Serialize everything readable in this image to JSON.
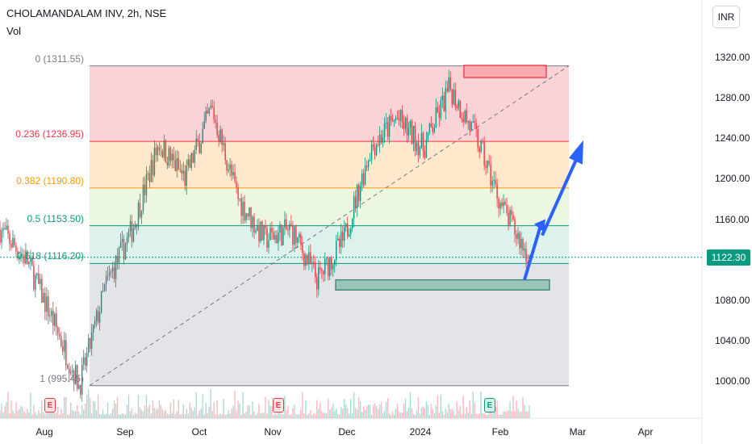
{
  "header": {
    "symbol": "CHOLAMANDALAM INV, 2h, NSE",
    "indicator": "Vol"
  },
  "currency_button": "INR",
  "last_price_tag": "1122.30",
  "colors": {
    "up": "#089981",
    "down": "#f23645",
    "arrow": "#2962ff"
  },
  "fib_levels": [
    {
      "ratio": "0",
      "label": "0 (1311.55)",
      "price": 1311.55,
      "fill": "#f9cbcf",
      "line": "#787b86",
      "text_color": "#787b86"
    },
    {
      "ratio": "0.236",
      "label": "0.236 (1236.95)",
      "price": 1236.95,
      "fill": "#ffe4c2",
      "line": "#f23645",
      "text_color": "#f23645"
    },
    {
      "ratio": "0.382",
      "label": "0.382 (1190.80)",
      "price": 1190.8,
      "fill": "#e9f6dc",
      "line": "#ff9800",
      "text_color": "#ff9800"
    },
    {
      "ratio": "0.5",
      "label": "0.5 (1153.50)",
      "price": 1153.5,
      "fill": "#d8f0ea",
      "line": "#089981",
      "text_color": "#089981"
    },
    {
      "ratio": "0.618",
      "label": "0.618 (1116.20)",
      "price": 1116.2,
      "fill": "#dedfe3",
      "line": "#089981",
      "text_color": "#089981"
    },
    {
      "ratio": "1",
      "label": "1 (995.45)",
      "price": 995.45,
      "fill": null,
      "line": "#787b86",
      "text_color": "#787b86"
    }
  ],
  "events": [
    {
      "type": "earnings",
      "symbol": "E",
      "date": "Aug"
    },
    {
      "type": "earnings",
      "symbol": "E",
      "date": "Nov"
    },
    {
      "type": "dividend",
      "symbol": "E",
      "date": "Jan"
    }
  ],
  "chart_data": {
    "type": "candlestick",
    "title": "CHOLAMANDALAM INV, 2h, NSE",
    "y_axis": {
      "ticks": [
        1320,
        1280,
        1240,
        1200,
        1160,
        1080,
        1040,
        1000
      ],
      "tick_labels": [
        "1320.00",
        "1280.00",
        "1240.00",
        "1200.00",
        "1160.00",
        "1080.00",
        "1040.00",
        "1000.00"
      ],
      "range": [
        975,
        1345
      ]
    },
    "x_axis": {
      "tick_labels": [
        "Aug",
        "Sep",
        "Oct",
        "Nov",
        "Dec",
        "2024",
        "Feb",
        "Mar",
        "Apr"
      ]
    },
    "price_path": [
      {
        "t": "Jul-end",
        "close": 1150
      },
      {
        "t": "Aug-early",
        "close": 1120
      },
      {
        "t": "Aug-mid",
        "close": 1060
      },
      {
        "t": "Aug-late",
        "close": 995.45
      },
      {
        "t": "Sep-early",
        "close": 1095
      },
      {
        "t": "Sep-mid",
        "close": 1150
      },
      {
        "t": "Sep-late",
        "close": 1235
      },
      {
        "t": "Oct-early",
        "close": 1200
      },
      {
        "t": "Oct-mid",
        "close": 1270
      },
      {
        "t": "Oct-late",
        "close": 1180
      },
      {
        "t": "Nov-early",
        "close": 1140
      },
      {
        "t": "Nov-mid",
        "close": 1150
      },
      {
        "t": "Nov-late",
        "close": 1100
      },
      {
        "t": "Dec-early",
        "close": 1140
      },
      {
        "t": "Dec-mid",
        "close": 1230
      },
      {
        "t": "Dec-late",
        "close": 1260
      },
      {
        "t": "Jan-early",
        "close": 1230
      },
      {
        "t": "Jan-mid",
        "close": 1290
      },
      {
        "t": "Jan-late",
        "close": 1240
      },
      {
        "t": "Feb-early",
        "close": 1170
      },
      {
        "t": "Feb-mid",
        "close": 1122.3
      }
    ],
    "last_price": 1122.3,
    "projection": {
      "from": 1100,
      "to": 1238
    },
    "support_zone": {
      "low": 1090,
      "high": 1100
    },
    "resistance_zone": {
      "low": 1300,
      "high": 1312
    }
  }
}
